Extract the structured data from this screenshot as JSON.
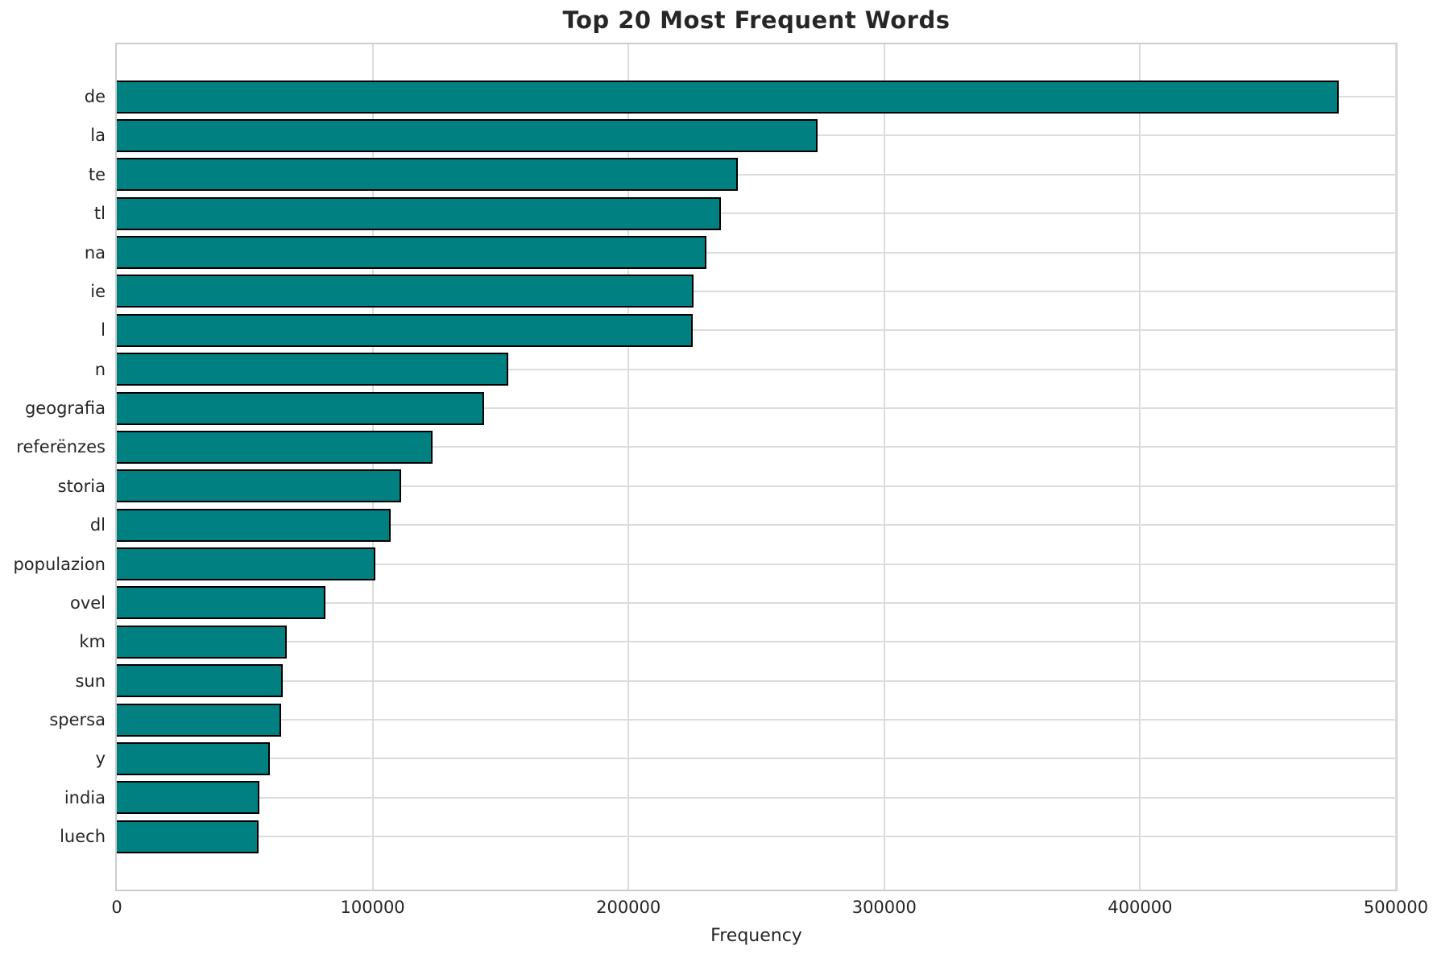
{
  "chart_data": {
    "type": "bar",
    "orientation": "horizontal",
    "title": "Top 20 Most Frequent Words",
    "xlabel": "Frequency",
    "ylabel": "",
    "categories": [
      "de",
      "la",
      "te",
      "tl",
      "na",
      "ie",
      "l",
      "n",
      "geografia",
      "referënzes",
      "storia",
      "dl",
      "populazion",
      "ovel",
      "km",
      "sun",
      "spersa",
      "y",
      "india",
      "luech"
    ],
    "values": [
      477600,
      273800,
      242900,
      236000,
      230500,
      225500,
      225200,
      153100,
      143500,
      123500,
      111200,
      107100,
      101200,
      81600,
      66500,
      64800,
      64300,
      59800,
      55800,
      55300
    ],
    "xlim": [
      0,
      500000
    ],
    "xticks": [
      0,
      100000,
      200000,
      300000,
      400000,
      500000
    ],
    "xtick_labels": [
      "0",
      "100000",
      "200000",
      "300000",
      "400000",
      "500000"
    ],
    "grid": true,
    "legend": false,
    "colors": {
      "bar_fill": "#008080",
      "bar_edge": "#000000",
      "grid": "#dcdcdc",
      "spine": "#cccccc",
      "text": "#262626",
      "background": "#ffffff"
    }
  }
}
